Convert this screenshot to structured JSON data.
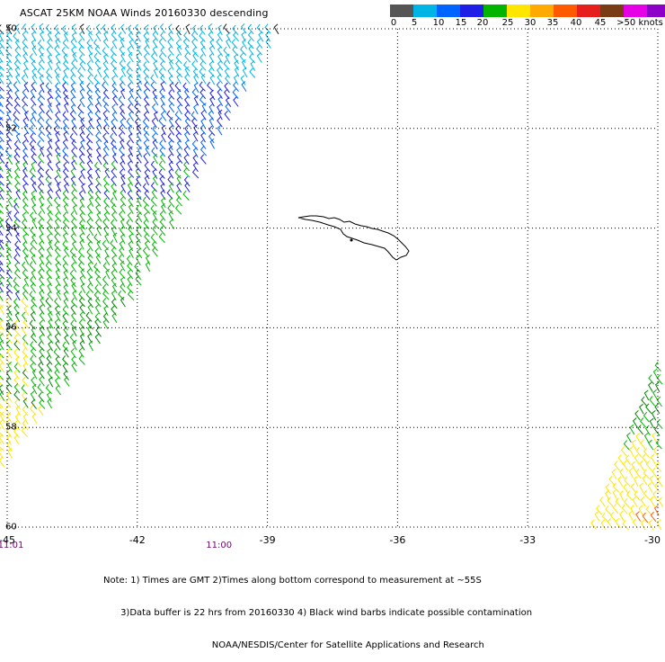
{
  "title": "ASCAT 25KM NOAA Winds 20160330 descending",
  "colorbar": {
    "colors": [
      "#555555",
      "#00b4e6",
      "#0064ff",
      "#1e1ee6",
      "#00b400",
      "#ffe600",
      "#ffaa00",
      "#ff5a00",
      "#e61e1e",
      "#7a3c14",
      "#e600e6",
      "#8c00c8",
      "#440088"
    ],
    "labels": [
      "0",
      "5",
      "10",
      "15",
      "20",
      "25",
      "30",
      "35",
      "40",
      "45",
      ">50 knots"
    ]
  },
  "map": {
    "lat_range": [
      -60,
      -50
    ],
    "lon_range": [
      -45,
      -30
    ],
    "lat_labels": [
      "50",
      "52",
      "54",
      "56",
      "58",
      "60"
    ],
    "lon_labels": [
      "-45",
      "-42",
      "-39",
      "-36",
      "-33",
      "-30"
    ]
  },
  "times": [
    {
      "label": "11:01",
      "lon": -45
    },
    {
      "label": "11:00",
      "lon": -40.2
    }
  ],
  "notes": [
    "Note: 1) Times are GMT 2)Times along bottom correspond to measurement at ~55S",
    "      3)Data buffer is 22 hrs from 20160330 4) Black wind barbs indicate possible contamination",
    "                                      NOAA/NESDIS/Center for Satellite Applications and Research"
  ]
}
